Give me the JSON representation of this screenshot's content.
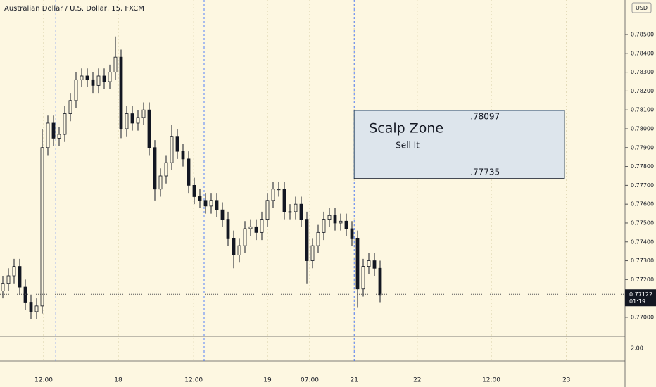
{
  "chart_data": {
    "type": "candlestick",
    "title": "Australian Dollar / U.S. Dollar, 15, FXCM",
    "currency": "USD",
    "x": [
      0,
      1,
      2,
      3,
      4,
      5,
      6,
      7,
      8,
      9,
      10,
      11,
      12,
      13,
      14,
      15,
      16,
      17,
      18,
      19,
      20,
      21,
      22,
      23,
      24,
      25,
      26,
      27,
      28,
      29,
      30,
      31,
      32,
      33,
      34,
      35,
      36,
      37,
      38,
      39,
      40,
      41,
      42,
      43,
      44,
      45,
      46,
      47,
      48,
      49,
      50,
      51,
      52,
      53,
      54,
      55,
      56,
      57,
      58,
      59,
      60,
      61,
      62,
      63,
      64,
      65,
      66,
      67
    ],
    "open": [
      0.7714,
      0.7718,
      0.7722,
      0.7727,
      0.7716,
      0.7708,
      0.7703,
      0.7706,
      0.779,
      0.7803,
      0.7795,
      0.7797,
      0.7808,
      0.7815,
      0.7826,
      0.7828,
      0.7826,
      0.7823,
      0.7828,
      0.7825,
      0.783,
      0.7838,
      0.78,
      0.7808,
      0.7803,
      0.7806,
      0.781,
      0.779,
      0.7768,
      0.7775,
      0.7782,
      0.7796,
      0.7788,
      0.7784,
      0.777,
      0.7764,
      0.7762,
      0.7759,
      0.7762,
      0.7757,
      0.7752,
      0.7742,
      0.7733,
      0.7738,
      0.7747,
      0.7748,
      0.7745,
      0.7752,
      0.7762,
      0.7768,
      0.7768,
      0.7756,
      0.7756,
      0.776,
      0.7752,
      0.773,
      0.7738,
      0.7745,
      0.7752,
      0.7754,
      0.775,
      0.7751,
      0.7747,
      0.7742,
      0.7715,
      0.7727,
      0.773,
      0.7726
    ],
    "high": [
      0.7722,
      0.7726,
      0.7731,
      0.7731,
      0.772,
      0.7712,
      0.771,
      0.78,
      0.7807,
      0.7807,
      0.7801,
      0.7812,
      0.7819,
      0.783,
      0.7832,
      0.7832,
      0.783,
      0.7832,
      0.7832,
      0.7834,
      0.7849,
      0.7842,
      0.7812,
      0.7812,
      0.781,
      0.7814,
      0.7814,
      0.7794,
      0.7779,
      0.7786,
      0.7802,
      0.78,
      0.7792,
      0.7788,
      0.7774,
      0.7768,
      0.7766,
      0.7766,
      0.7766,
      0.7761,
      0.7756,
      0.7746,
      0.7742,
      0.7751,
      0.7752,
      0.7752,
      0.7756,
      0.7766,
      0.7772,
      0.7772,
      0.7772,
      0.776,
      0.7764,
      0.7764,
      0.7756,
      0.7742,
      0.7749,
      0.7756,
      0.7758,
      0.7758,
      0.7755,
      0.7755,
      0.7751,
      0.7746,
      0.7731,
      0.7734,
      0.7734,
      0.773
    ],
    "low": [
      0.771,
      0.7714,
      0.7718,
      0.7712,
      0.7704,
      0.7699,
      0.7699,
      0.7702,
      0.7786,
      0.7791,
      0.7791,
      0.7793,
      0.7804,
      0.7811,
      0.7822,
      0.7822,
      0.7819,
      0.7819,
      0.7821,
      0.7821,
      0.7826,
      0.7795,
      0.7796,
      0.7799,
      0.7799,
      0.7802,
      0.7786,
      0.7762,
      0.7764,
      0.7771,
      0.7778,
      0.7784,
      0.778,
      0.7766,
      0.776,
      0.7758,
      0.7755,
      0.7755,
      0.7753,
      0.7748,
      0.7738,
      0.7726,
      0.7729,
      0.7734,
      0.7743,
      0.7741,
      0.7741,
      0.7748,
      0.7758,
      0.7764,
      0.7752,
      0.7752,
      0.7752,
      0.7748,
      0.7718,
      0.7726,
      0.7734,
      0.7741,
      0.7748,
      0.7746,
      0.7746,
      0.7743,
      0.7738,
      0.7705,
      0.7711,
      0.7723,
      0.7722,
      0.7708
    ],
    "close": [
      0.7718,
      0.7722,
      0.7727,
      0.7716,
      0.7708,
      0.7703,
      0.7706,
      0.779,
      0.7803,
      0.7795,
      0.7797,
      0.7808,
      0.7815,
      0.7826,
      0.7828,
      0.7826,
      0.7823,
      0.7828,
      0.7825,
      0.783,
      0.7838,
      0.78,
      0.7808,
      0.7803,
      0.7806,
      0.781,
      0.779,
      0.7768,
      0.7775,
      0.7782,
      0.7796,
      0.7788,
      0.7784,
      0.777,
      0.7764,
      0.7762,
      0.7759,
      0.7762,
      0.7757,
      0.7752,
      0.7742,
      0.7733,
      0.7738,
      0.7747,
      0.7748,
      0.7745,
      0.7752,
      0.7762,
      0.7768,
      0.7768,
      0.7756,
      0.7756,
      0.776,
      0.7752,
      0.773,
      0.7738,
      0.7745,
      0.7752,
      0.7754,
      0.775,
      0.7751,
      0.7747,
      0.7742,
      0.7715,
      0.7727,
      0.773,
      0.7726,
      0.7712
    ],
    "color": "#131722",
    "xlim": [
      -0.5,
      110.5
    ],
    "xticks": [
      {
        "value": 7.25,
        "label": "12:00"
      },
      {
        "value": 20.5,
        "label": "18"
      },
      {
        "value": 33.9,
        "label": "12:00"
      },
      {
        "value": 47,
        "label": "19"
      },
      {
        "value": 54.5,
        "label": "07:00"
      },
      {
        "value": 62.4,
        "label": "21"
      },
      {
        "value": 73.6,
        "label": "22"
      },
      {
        "value": 86.75,
        "label": "12:00"
      },
      {
        "value": 100.1,
        "label": "23"
      }
    ],
    "session_breaks": [
      9.4,
      35.75,
      62.4
    ],
    "ylim": [
      0.76899,
      0.78683
    ],
    "yticks": [
      {
        "value": 0.77,
        "label": "0.77000"
      },
      {
        "value": 0.771,
        "label": "0.77100"
      },
      {
        "value": 0.772,
        "label": "0.77200"
      },
      {
        "value": 0.773,
        "label": "0.77300"
      },
      {
        "value": 0.774,
        "label": "0.77400"
      },
      {
        "value": 0.775,
        "label": "0.77500"
      },
      {
        "value": 0.776,
        "label": "0.77600"
      },
      {
        "value": 0.777,
        "label": "0.77700"
      },
      {
        "value": 0.778,
        "label": "0.77800"
      },
      {
        "value": 0.779,
        "label": "0.77900"
      },
      {
        "value": 0.78,
        "label": "0.78000"
      },
      {
        "value": 0.781,
        "label": "0.78100"
      },
      {
        "value": 0.782,
        "label": "0.78200"
      },
      {
        "value": 0.783,
        "label": "0.78300"
      },
      {
        "value": 0.784,
        "label": "0.78400"
      },
      {
        "value": 0.785,
        "label": "0.78500"
      }
    ],
    "last_price": 0.77122,
    "countdown": "01:19",
    "zone": {
      "x": [
        62.4,
        99.75
      ],
      "top": {
        "value": 0.78097,
        "label": ".78097"
      },
      "bottom": {
        "value": 0.77735,
        "label": ".77735"
      },
      "title": "Scalp Zone",
      "subtitle": "Sell It",
      "color": "#dde5ec"
    },
    "indicator_ticks": [
      {
        "value": 2,
        "label": "2.00"
      }
    ]
  }
}
